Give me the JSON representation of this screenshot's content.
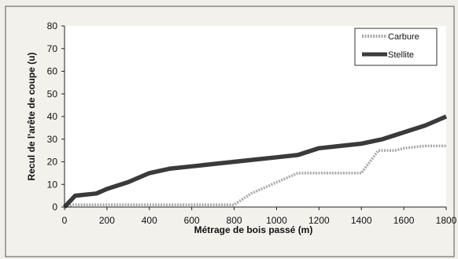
{
  "chart_data": {
    "type": "line",
    "title": "",
    "xlabel": "Métrage de bois passé (m)",
    "ylabel": "Recul de l'arête de coupe (u)",
    "xlim": [
      0,
      1800
    ],
    "ylim": [
      0,
      80
    ],
    "x_ticks": [
      "0",
      "200",
      "400",
      "600",
      "800",
      "1000",
      "1200",
      "1400",
      "1600",
      "1800"
    ],
    "y_ticks": [
      "0",
      "10",
      "20",
      "30",
      "40",
      "50",
      "60",
      "70",
      "80"
    ],
    "grid": false,
    "legend_position": "top-right",
    "series": [
      {
        "name": "Carbure",
        "color": "#a8a8a8",
        "style": "dotted-thick",
        "x": [
          0,
          40,
          800,
          880,
          1100,
          1200,
          1400,
          1480,
          1500,
          1560,
          1600,
          1700,
          1800
        ],
        "y": [
          0,
          1,
          1,
          6,
          15,
          15,
          15,
          25,
          25,
          25,
          26,
          27,
          27
        ]
      },
      {
        "name": "Stellite",
        "color": "#3a3a3a",
        "style": "solid-thick",
        "x": [
          0,
          50,
          150,
          200,
          300,
          400,
          500,
          600,
          700,
          800,
          900,
          1000,
          1100,
          1200,
          1300,
          1400,
          1500,
          1600,
          1700,
          1800
        ],
        "y": [
          0,
          5,
          6,
          8,
          11,
          15,
          17,
          18,
          19,
          20,
          21,
          22,
          23,
          26,
          27,
          28,
          30,
          33,
          36,
          40
        ]
      }
    ]
  }
}
